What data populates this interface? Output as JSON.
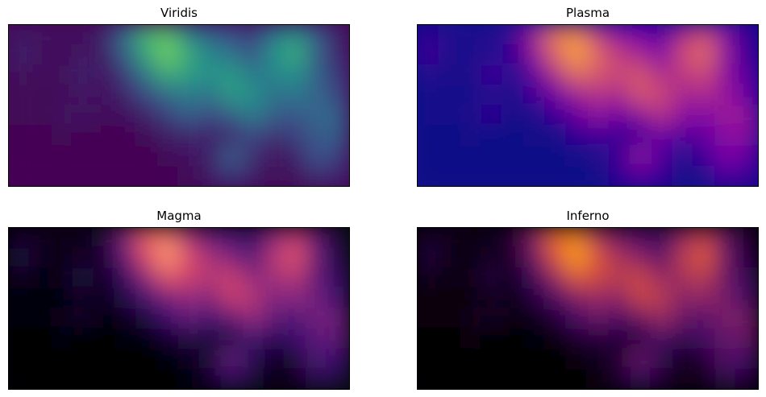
{
  "chart_data": [
    {
      "type": "heatmap",
      "title": "Viridis",
      "colormap": "viridis",
      "colormap_stops": [
        "#440154",
        "#3b528b",
        "#21918c",
        "#5ec962",
        "#fde725"
      ],
      "grid": false,
      "ticks": false,
      "rows": 8,
      "cols": 16,
      "values": [
        [
          0.08,
          0.06,
          0.04,
          0.05,
          0.1,
          0.35,
          0.65,
          0.72,
          0.45,
          0.3,
          0.25,
          0.18,
          0.4,
          0.52,
          0.28,
          0.1
        ],
        [
          0.12,
          0.04,
          0.03,
          0.06,
          0.08,
          0.3,
          0.6,
          0.78,
          0.6,
          0.45,
          0.38,
          0.25,
          0.5,
          0.62,
          0.3,
          0.12
        ],
        [
          0.06,
          0.02,
          0.03,
          0.12,
          0.05,
          0.18,
          0.4,
          0.62,
          0.55,
          0.5,
          0.55,
          0.4,
          0.45,
          0.5,
          0.3,
          0.18
        ],
        [
          0.02,
          0.02,
          0.02,
          0.05,
          0.04,
          0.12,
          0.22,
          0.35,
          0.42,
          0.38,
          0.55,
          0.5,
          0.36,
          0.4,
          0.32,
          0.22
        ],
        [
          0.02,
          0.02,
          0.03,
          0.08,
          0.02,
          0.04,
          0.1,
          0.2,
          0.3,
          0.22,
          0.3,
          0.42,
          0.3,
          0.25,
          0.35,
          0.32
        ],
        [
          0.0,
          0.0,
          0.02,
          0.0,
          0.0,
          0.01,
          0.02,
          0.08,
          0.12,
          0.1,
          0.12,
          0.22,
          0.15,
          0.2,
          0.28,
          0.3
        ],
        [
          0.0,
          0.0,
          0.0,
          0.0,
          0.0,
          0.0,
          0.0,
          0.02,
          0.05,
          0.1,
          0.3,
          0.15,
          0.05,
          0.1,
          0.25,
          0.2
        ],
        [
          0.0,
          0.0,
          0.0,
          0.0,
          0.0,
          0.0,
          0.0,
          0.0,
          0.02,
          0.08,
          0.18,
          0.1,
          0.02,
          0.06,
          0.15,
          0.12
        ]
      ]
    },
    {
      "type": "heatmap",
      "title": "Plasma",
      "colormap": "plasma",
      "colormap_stops": [
        "#0d0887",
        "#7e03a8",
        "#cc4778",
        "#f89540",
        "#f0f921"
      ],
      "grid": false,
      "ticks": false,
      "rows": 8,
      "cols": 16,
      "values": [
        [
          0.08,
          0.06,
          0.04,
          0.05,
          0.1,
          0.35,
          0.65,
          0.72,
          0.45,
          0.3,
          0.25,
          0.18,
          0.4,
          0.52,
          0.28,
          0.1
        ],
        [
          0.12,
          0.04,
          0.03,
          0.06,
          0.08,
          0.3,
          0.6,
          0.78,
          0.6,
          0.45,
          0.38,
          0.25,
          0.5,
          0.62,
          0.3,
          0.12
        ],
        [
          0.06,
          0.02,
          0.03,
          0.12,
          0.05,
          0.18,
          0.4,
          0.62,
          0.55,
          0.5,
          0.55,
          0.4,
          0.45,
          0.5,
          0.3,
          0.18
        ],
        [
          0.02,
          0.02,
          0.02,
          0.05,
          0.04,
          0.12,
          0.22,
          0.35,
          0.42,
          0.38,
          0.55,
          0.5,
          0.36,
          0.4,
          0.32,
          0.22
        ],
        [
          0.02,
          0.02,
          0.03,
          0.08,
          0.02,
          0.04,
          0.1,
          0.2,
          0.3,
          0.22,
          0.3,
          0.42,
          0.3,
          0.25,
          0.35,
          0.32
        ],
        [
          0.0,
          0.0,
          0.02,
          0.0,
          0.0,
          0.01,
          0.02,
          0.08,
          0.12,
          0.1,
          0.12,
          0.22,
          0.15,
          0.2,
          0.28,
          0.3
        ],
        [
          0.0,
          0.0,
          0.0,
          0.0,
          0.0,
          0.0,
          0.0,
          0.02,
          0.05,
          0.1,
          0.3,
          0.15,
          0.05,
          0.1,
          0.25,
          0.2
        ],
        [
          0.0,
          0.0,
          0.0,
          0.0,
          0.0,
          0.0,
          0.0,
          0.0,
          0.02,
          0.08,
          0.18,
          0.1,
          0.02,
          0.06,
          0.15,
          0.12
        ]
      ]
    },
    {
      "type": "heatmap",
      "title": "Magma",
      "colormap": "magma",
      "colormap_stops": [
        "#000004",
        "#3b0f70",
        "#8c2981",
        "#de4968",
        "#fe9f6d",
        "#fcfdbf"
      ],
      "grid": false,
      "ticks": false,
      "rows": 8,
      "cols": 16,
      "values": [
        [
          0.08,
          0.06,
          0.04,
          0.05,
          0.1,
          0.35,
          0.65,
          0.72,
          0.45,
          0.3,
          0.25,
          0.18,
          0.4,
          0.52,
          0.28,
          0.1
        ],
        [
          0.12,
          0.04,
          0.03,
          0.06,
          0.08,
          0.3,
          0.6,
          0.78,
          0.6,
          0.45,
          0.38,
          0.25,
          0.5,
          0.62,
          0.3,
          0.12
        ],
        [
          0.06,
          0.02,
          0.03,
          0.12,
          0.05,
          0.18,
          0.4,
          0.62,
          0.55,
          0.5,
          0.55,
          0.4,
          0.45,
          0.5,
          0.3,
          0.18
        ],
        [
          0.02,
          0.02,
          0.02,
          0.05,
          0.04,
          0.12,
          0.22,
          0.35,
          0.42,
          0.38,
          0.55,
          0.5,
          0.36,
          0.4,
          0.32,
          0.22
        ],
        [
          0.02,
          0.02,
          0.03,
          0.08,
          0.02,
          0.04,
          0.1,
          0.2,
          0.3,
          0.22,
          0.3,
          0.42,
          0.3,
          0.25,
          0.35,
          0.32
        ],
        [
          0.0,
          0.0,
          0.02,
          0.0,
          0.0,
          0.01,
          0.02,
          0.08,
          0.12,
          0.1,
          0.12,
          0.22,
          0.15,
          0.2,
          0.28,
          0.3
        ],
        [
          0.0,
          0.0,
          0.0,
          0.0,
          0.0,
          0.0,
          0.0,
          0.02,
          0.05,
          0.1,
          0.3,
          0.15,
          0.05,
          0.1,
          0.25,
          0.2
        ],
        [
          0.0,
          0.0,
          0.0,
          0.0,
          0.0,
          0.0,
          0.0,
          0.0,
          0.02,
          0.08,
          0.18,
          0.1,
          0.02,
          0.06,
          0.15,
          0.12
        ]
      ]
    },
    {
      "type": "heatmap",
      "title": "Inferno",
      "colormap": "inferno",
      "colormap_stops": [
        "#000004",
        "#420a68",
        "#932667",
        "#dd513a",
        "#fca50a",
        "#fcffa4"
      ],
      "grid": false,
      "ticks": false,
      "rows": 8,
      "cols": 16,
      "values": [
        [
          0.08,
          0.06,
          0.04,
          0.05,
          0.1,
          0.35,
          0.65,
          0.72,
          0.45,
          0.3,
          0.25,
          0.18,
          0.4,
          0.52,
          0.28,
          0.1
        ],
        [
          0.12,
          0.04,
          0.03,
          0.06,
          0.08,
          0.3,
          0.6,
          0.78,
          0.6,
          0.45,
          0.38,
          0.25,
          0.5,
          0.62,
          0.3,
          0.12
        ],
        [
          0.06,
          0.02,
          0.03,
          0.12,
          0.05,
          0.18,
          0.4,
          0.62,
          0.55,
          0.5,
          0.55,
          0.4,
          0.45,
          0.5,
          0.3,
          0.18
        ],
        [
          0.02,
          0.02,
          0.02,
          0.05,
          0.04,
          0.12,
          0.22,
          0.35,
          0.42,
          0.38,
          0.55,
          0.5,
          0.36,
          0.4,
          0.32,
          0.22
        ],
        [
          0.02,
          0.02,
          0.03,
          0.08,
          0.02,
          0.04,
          0.1,
          0.2,
          0.3,
          0.22,
          0.3,
          0.42,
          0.3,
          0.25,
          0.35,
          0.32
        ],
        [
          0.0,
          0.0,
          0.02,
          0.0,
          0.0,
          0.01,
          0.02,
          0.08,
          0.12,
          0.1,
          0.12,
          0.22,
          0.15,
          0.2,
          0.28,
          0.3
        ],
        [
          0.0,
          0.0,
          0.0,
          0.0,
          0.0,
          0.0,
          0.0,
          0.02,
          0.05,
          0.1,
          0.3,
          0.15,
          0.05,
          0.1,
          0.25,
          0.2
        ],
        [
          0.0,
          0.0,
          0.0,
          0.0,
          0.0,
          0.0,
          0.0,
          0.0,
          0.02,
          0.08,
          0.18,
          0.1,
          0.02,
          0.06,
          0.15,
          0.12
        ]
      ]
    }
  ]
}
